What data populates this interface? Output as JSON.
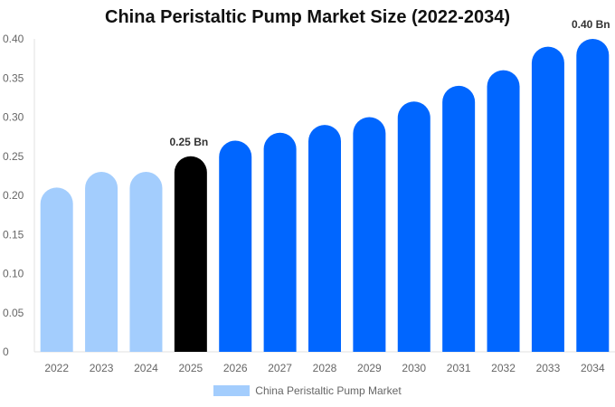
{
  "chart_data": {
    "type": "bar",
    "title": "China Peristaltic Pump Market Size (2022-2034)",
    "categories": [
      "2022",
      "2023",
      "2024",
      "2025",
      "2026",
      "2027",
      "2028",
      "2029",
      "2030",
      "2031",
      "2032",
      "2033",
      "2034"
    ],
    "series": [
      {
        "name": "China Peristaltic Pump Market",
        "values": [
          0.21,
          0.23,
          0.23,
          0.25,
          0.27,
          0.28,
          0.29,
          0.3,
          0.32,
          0.34,
          0.36,
          0.39,
          0.4
        ]
      }
    ],
    "ylim": [
      0,
      0.4
    ],
    "yticks": [
      "0",
      "0.05",
      "0.10",
      "0.15",
      "0.20",
      "0.25",
      "0.30",
      "0.35",
      "0.40"
    ],
    "data_labels": [
      {
        "category": "2025",
        "text": "0.25 Bn"
      },
      {
        "category": "2034",
        "text": "0.40 Bn"
      }
    ],
    "colors": {
      "historical": "#a3cdfd",
      "base_year": "#000000",
      "forecast": "#0066ff"
    },
    "bar_color_groups": [
      "historical",
      "historical",
      "historical",
      "base_year",
      "forecast",
      "forecast",
      "forecast",
      "forecast",
      "forecast",
      "forecast",
      "forecast",
      "forecast",
      "forecast"
    ],
    "grid": false,
    "legend_position": "bottom"
  }
}
